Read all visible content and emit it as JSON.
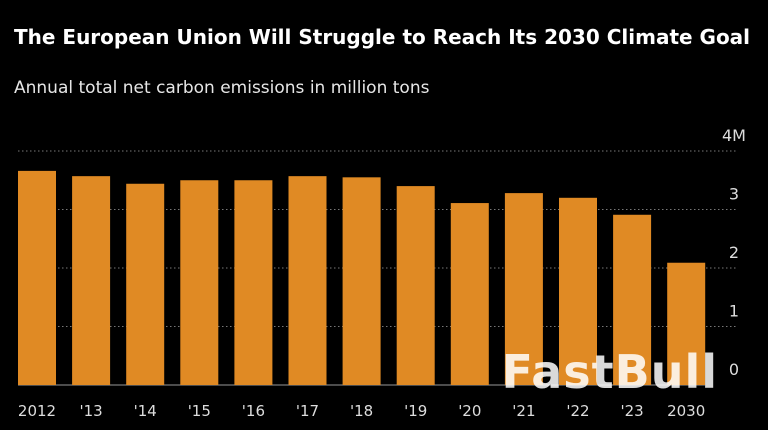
{
  "chart_data": {
    "type": "bar",
    "title": "The European Union Will Struggle to Reach Its 2030 Climate Goal",
    "subtitle": "Annual total net carbon emissions in million tons",
    "categories": [
      "2012",
      "'13",
      "'14",
      "'15",
      "'16",
      "'17",
      "'18",
      "'19",
      "'20",
      "'21",
      "'22",
      "'23",
      "2030"
    ],
    "values": [
      3.66,
      3.57,
      3.44,
      3.5,
      3.5,
      3.57,
      3.55,
      3.4,
      3.11,
      3.28,
      3.2,
      2.91,
      2.09
    ],
    "ylim": [
      0,
      4
    ],
    "yticks": [
      {
        "value": 0,
        "label": "0"
      },
      {
        "value": 1,
        "label": "1"
      },
      {
        "value": 2,
        "label": "2"
      },
      {
        "value": 3,
        "label": "3"
      },
      {
        "value": 4,
        "label": "4M"
      }
    ],
    "grid": true,
    "bar_color": "#e08a24",
    "xlabel": "",
    "ylabel": ""
  },
  "watermark": "FastBull"
}
